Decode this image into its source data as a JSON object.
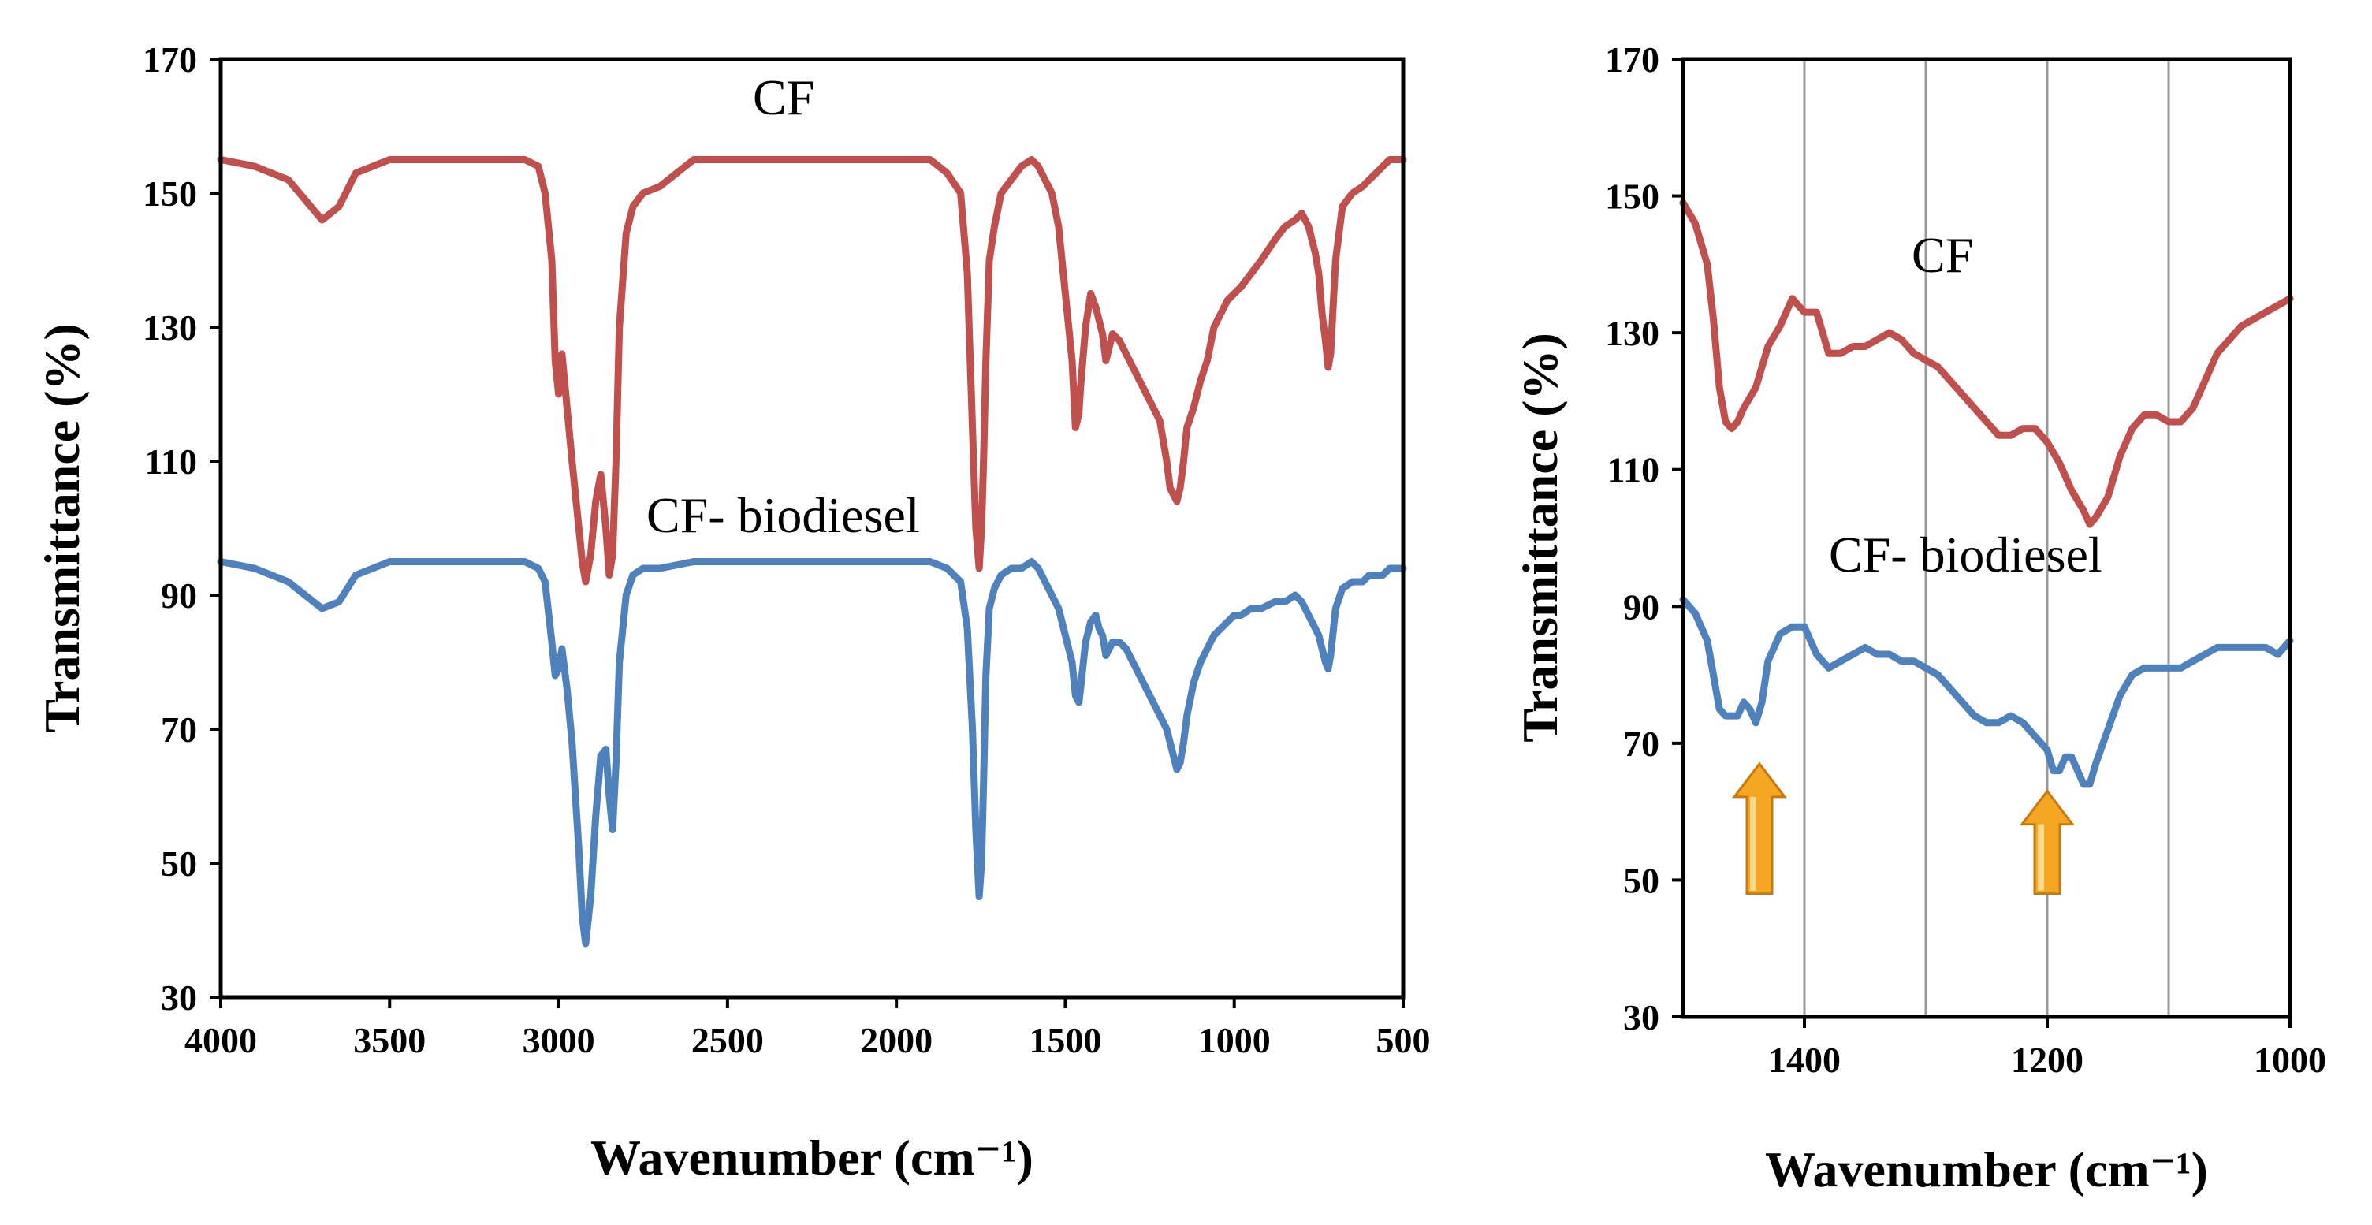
{
  "chart_data": [
    {
      "type": "line",
      "title": "",
      "xlabel": "Wavenumber (cm⁻¹)",
      "ylabel": "Transmittance (%)",
      "xlim": [
        4000,
        500
      ],
      "ylim": [
        30,
        170
      ],
      "xticks": [
        "4000",
        "3500",
        "3000",
        "2500",
        "2000",
        "1500",
        "1000",
        "500"
      ],
      "yticks": [
        "30",
        "50",
        "70",
        "90",
        "110",
        "130",
        "150",
        "170"
      ],
      "grid": false,
      "series": [
        {
          "name": "CF",
          "color": "#c0504d",
          "x": [
            4000,
            3900,
            3800,
            3750,
            3700,
            3650,
            3600,
            3500,
            3400,
            3300,
            3200,
            3100,
            3060,
            3040,
            3020,
            3010,
            3000,
            2990,
            2975,
            2960,
            2940,
            2930,
            2920,
            2905,
            2890,
            2875,
            2860,
            2850,
            2840,
            2830,
            2820,
            2800,
            2780,
            2750,
            2700,
            2600,
            2500,
            2400,
            2300,
            2200,
            2100,
            2000,
            1900,
            1850,
            1810,
            1790,
            1775,
            1765,
            1755,
            1748,
            1742,
            1735,
            1725,
            1710,
            1690,
            1660,
            1630,
            1600,
            1580,
            1560,
            1540,
            1520,
            1500,
            1480,
            1470,
            1460,
            1455,
            1440,
            1425,
            1410,
            1400,
            1390,
            1380,
            1360,
            1340,
            1320,
            1300,
            1280,
            1260,
            1240,
            1220,
            1200,
            1190,
            1180,
            1170,
            1160,
            1150,
            1140,
            1120,
            1100,
            1080,
            1060,
            1040,
            1020,
            1000,
            980,
            950,
            920,
            880,
            850,
            820,
            800,
            790,
            780,
            770,
            760,
            750,
            740,
            730,
            722,
            715,
            700,
            680,
            650,
            620,
            600,
            580,
            560,
            540,
            520,
            500
          ],
          "y": [
            155,
            154,
            152,
            149,
            146,
            148,
            153,
            155,
            155,
            155,
            155,
            155,
            154,
            150,
            140,
            125,
            120,
            126,
            118,
            110,
            100,
            95,
            92,
            96,
            104,
            108,
            100,
            93,
            96,
            110,
            130,
            144,
            148,
            150,
            151,
            155,
            155,
            155,
            155,
            155,
            155,
            155,
            155,
            153,
            150,
            138,
            115,
            100,
            94,
            100,
            110,
            125,
            140,
            145,
            150,
            152,
            154,
            155,
            154,
            152,
            150,
            145,
            135,
            125,
            115,
            117,
            121,
            130,
            135,
            133,
            131,
            129,
            125,
            129,
            128,
            126,
            124,
            122,
            120,
            118,
            116,
            110,
            106,
            105,
            104,
            106,
            110,
            115,
            118,
            122,
            125,
            130,
            132,
            134,
            135,
            136,
            138,
            140,
            143,
            145,
            146,
            147,
            146,
            145,
            143,
            141,
            138,
            132,
            128,
            124,
            126,
            140,
            148,
            150,
            151,
            152,
            153,
            154,
            155,
            155,
            155
          ]
        },
        {
          "name": "CF- biodiesel",
          "color": "#4f81bd",
          "x": [
            4000,
            3900,
            3800,
            3750,
            3700,
            3650,
            3600,
            3500,
            3400,
            3300,
            3200,
            3100,
            3060,
            3040,
            3020,
            3010,
            3000,
            2990,
            2975,
            2960,
            2940,
            2930,
            2920,
            2905,
            2890,
            2875,
            2860,
            2850,
            2840,
            2830,
            2820,
            2800,
            2780,
            2750,
            2700,
            2600,
            2500,
            2400,
            2300,
            2200,
            2100,
            2000,
            1900,
            1850,
            1810,
            1790,
            1775,
            1765,
            1755,
            1748,
            1742,
            1735,
            1725,
            1710,
            1690,
            1660,
            1630,
            1600,
            1580,
            1560,
            1540,
            1520,
            1500,
            1480,
            1470,
            1460,
            1455,
            1440,
            1425,
            1410,
            1400,
            1390,
            1380,
            1360,
            1340,
            1320,
            1300,
            1280,
            1260,
            1240,
            1220,
            1200,
            1190,
            1180,
            1170,
            1160,
            1150,
            1140,
            1120,
            1100,
            1080,
            1060,
            1040,
            1020,
            1000,
            980,
            950,
            920,
            880,
            850,
            820,
            800,
            790,
            780,
            770,
            760,
            750,
            740,
            730,
            722,
            715,
            700,
            680,
            650,
            620,
            600,
            580,
            560,
            540,
            520,
            500
          ],
          "y": [
            95,
            94,
            92,
            90,
            88,
            89,
            93,
            95,
            95,
            95,
            95,
            95,
            94,
            92,
            83,
            78,
            79,
            82,
            76,
            68,
            52,
            42,
            38,
            45,
            57,
            66,
            67,
            60,
            55,
            65,
            80,
            90,
            93,
            94,
            94,
            95,
            95,
            95,
            95,
            95,
            95,
            95,
            95,
            94,
            92,
            85,
            70,
            55,
            45,
            50,
            62,
            78,
            88,
            91,
            93,
            94,
            94,
            95,
            94,
            92,
            90,
            88,
            84,
            80,
            75,
            74,
            76,
            83,
            86,
            87,
            85,
            84,
            81,
            83,
            83,
            82,
            80,
            78,
            76,
            74,
            72,
            70,
            68,
            66,
            64,
            65,
            68,
            72,
            77,
            80,
            82,
            84,
            85,
            86,
            87,
            87,
            88,
            88,
            89,
            89,
            90,
            89,
            88,
            87,
            86,
            85,
            84,
            82,
            80,
            79,
            81,
            88,
            91,
            92,
            92,
            93,
            93,
            93,
            94,
            94,
            94
          ]
        }
      ]
    },
    {
      "type": "line",
      "title": "",
      "xlabel": "Wavenumber (cm⁻¹)",
      "ylabel": "Transmittance (%)",
      "xlim": [
        1500,
        1000
      ],
      "ylim": [
        30,
        170
      ],
      "xticks": [
        "1400",
        "1200",
        "1000"
      ],
      "yticks": [
        "30",
        "50",
        "70",
        "90",
        "110",
        "130",
        "150",
        "170"
      ],
      "vgrid": [
        1400,
        1300,
        1200,
        1100
      ],
      "grid": true,
      "annotations": [
        {
          "type": "arrow",
          "x": 1437,
          "y_base": 48,
          "y_tip": 67,
          "color": "#f5a623"
        },
        {
          "type": "arrow",
          "x": 1200,
          "y_base": 48,
          "y_tip": 63,
          "color": "#f5a623"
        }
      ],
      "series": [
        {
          "name": "CF",
          "color": "#c0504d",
          "x": [
            1500,
            1490,
            1480,
            1475,
            1470,
            1465,
            1460,
            1455,
            1450,
            1440,
            1430,
            1420,
            1410,
            1400,
            1390,
            1380,
            1370,
            1360,
            1350,
            1340,
            1330,
            1320,
            1310,
            1300,
            1290,
            1280,
            1270,
            1260,
            1250,
            1240,
            1230,
            1220,
            1210,
            1200,
            1190,
            1180,
            1170,
            1165,
            1160,
            1150,
            1140,
            1130,
            1120,
            1110,
            1100,
            1090,
            1080,
            1070,
            1060,
            1050,
            1040,
            1030,
            1020,
            1010,
            1000
          ],
          "y": [
            149,
            146,
            140,
            132,
            122,
            117,
            116,
            117,
            119,
            122,
            128,
            131,
            135,
            133,
            133,
            127,
            127,
            128,
            128,
            129,
            130,
            129,
            127,
            126,
            125,
            123,
            121,
            119,
            117,
            115,
            115,
            116,
            116,
            114,
            111,
            107,
            104,
            102,
            103,
            106,
            112,
            116,
            118,
            118,
            117,
            117,
            119,
            123,
            127,
            129,
            131,
            132,
            133,
            134,
            135
          ]
        },
        {
          "name": "CF- biodiesel",
          "color": "#4f81bd",
          "x": [
            1500,
            1490,
            1480,
            1475,
            1470,
            1465,
            1460,
            1455,
            1450,
            1445,
            1440,
            1435,
            1430,
            1420,
            1410,
            1400,
            1390,
            1380,
            1370,
            1360,
            1350,
            1340,
            1330,
            1320,
            1310,
            1300,
            1290,
            1280,
            1270,
            1260,
            1250,
            1240,
            1230,
            1220,
            1210,
            1200,
            1195,
            1190,
            1185,
            1180,
            1175,
            1170,
            1165,
            1160,
            1150,
            1140,
            1130,
            1120,
            1110,
            1100,
            1090,
            1080,
            1070,
            1060,
            1050,
            1040,
            1030,
            1020,
            1010,
            1000
          ],
          "y": [
            91,
            89,
            85,
            80,
            75,
            74,
            74,
            74,
            76,
            75,
            73,
            76,
            82,
            86,
            87,
            87,
            83,
            81,
            82,
            83,
            84,
            83,
            83,
            82,
            82,
            81,
            80,
            78,
            76,
            74,
            73,
            73,
            74,
            73,
            71,
            69,
            66,
            66,
            68,
            68,
            66,
            64,
            64,
            67,
            72,
            77,
            80,
            81,
            81,
            81,
            81,
            82,
            83,
            84,
            84,
            84,
            84,
            84,
            83,
            85
          ]
        }
      ]
    }
  ]
}
